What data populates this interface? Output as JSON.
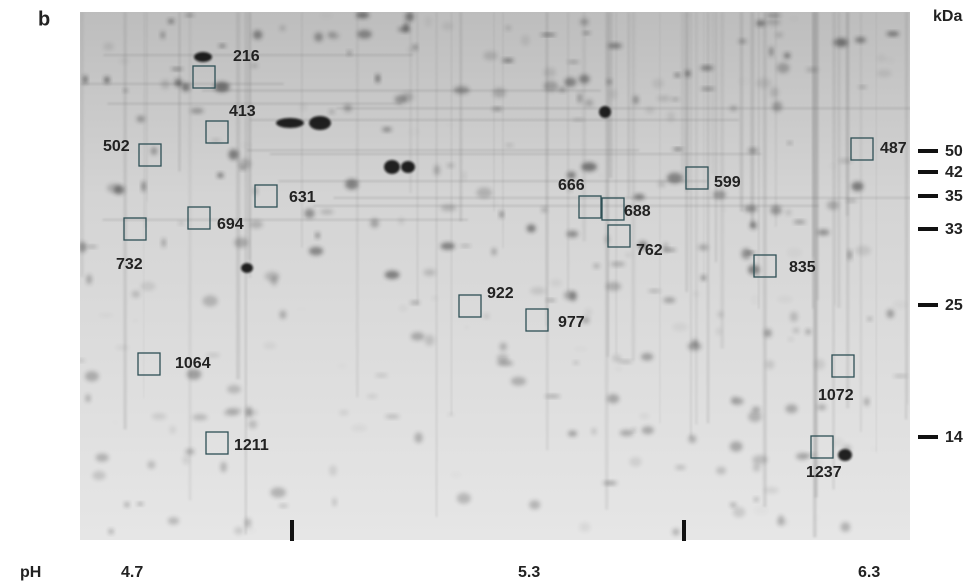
{
  "panel_label": "b",
  "mw_axis": {
    "unit": "kDa",
    "markers": [
      "50",
      "42",
      "35",
      "33",
      "25",
      "14"
    ]
  },
  "ph_axis": {
    "label": "pH",
    "ticks": [
      "4.7",
      "5.3",
      "6.3"
    ]
  },
  "spots": [
    {
      "label": "216"
    },
    {
      "label": "413"
    },
    {
      "label": "502"
    },
    {
      "label": "487"
    },
    {
      "label": "599"
    },
    {
      "label": "666"
    },
    {
      "label": "688"
    },
    {
      "label": "631"
    },
    {
      "label": "694"
    },
    {
      "label": "732"
    },
    {
      "label": "762"
    },
    {
      "label": "835"
    },
    {
      "label": "922"
    },
    {
      "label": "977"
    },
    {
      "label": "1064"
    },
    {
      "label": "1072"
    },
    {
      "label": "1211"
    },
    {
      "label": "1237"
    }
  ]
}
